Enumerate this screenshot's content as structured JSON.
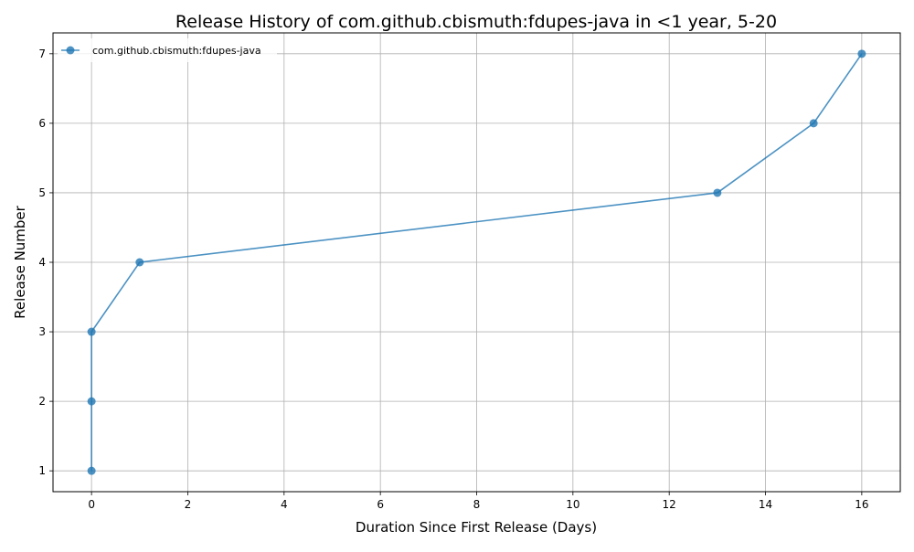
{
  "chart_data": {
    "type": "line",
    "title": "Release History of com.github.cbismuth:fdupes-java in <1 year, 5-20",
    "xlabel": "Duration Since First Release (Days)",
    "ylabel": "Release Number",
    "xlim": [
      -0.8,
      16.8
    ],
    "ylim": [
      0.7,
      7.3
    ],
    "xticks": [
      0,
      2,
      4,
      6,
      8,
      10,
      12,
      14,
      16
    ],
    "yticks": [
      1,
      2,
      3,
      4,
      5,
      6,
      7
    ],
    "grid": true,
    "legend_position": "top-left",
    "series": [
      {
        "name": "com.github.cbismuth:fdupes-java",
        "color": "#1f77b4",
        "marker": "circle",
        "x": [
          0,
          0,
          0,
          1,
          13,
          15,
          16
        ],
        "y": [
          1,
          2,
          3,
          4,
          5,
          6,
          7
        ]
      }
    ]
  }
}
